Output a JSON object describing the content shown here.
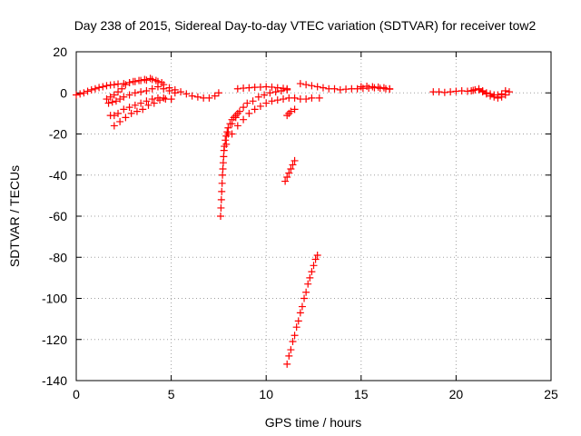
{
  "chart_data": {
    "type": "scatter",
    "title": "Day 238 of 2015, Sidereal Day-to-day VTEC variation (SDTVAR) for receiver tow2",
    "xlabel": "GPS time / hours",
    "ylabel": "SDTVAR / TECUs",
    "xlim": [
      0,
      25
    ],
    "ylim": [
      -140,
      20
    ],
    "xticks": [
      "0",
      "5",
      "10",
      "15",
      "20",
      "25"
    ],
    "yticks": [
      "20",
      "0",
      "-20",
      "-40",
      "-60",
      "-80",
      "-100",
      "-120",
      "-140"
    ],
    "grid": true,
    "marker": "plus",
    "color": "#ff0000",
    "series": [
      {
        "x": [
          0.0,
          0.2,
          0.4,
          0.6,
          0.8,
          1.0,
          1.2,
          1.4,
          1.6,
          1.8,
          2.0,
          2.2,
          2.5,
          2.8,
          3.1,
          3.4,
          3.7,
          4.0,
          4.3,
          4.6,
          4.9,
          5.2,
          5.5,
          5.8,
          6.1,
          6.4,
          6.7,
          7.0,
          7.3,
          7.5
        ],
        "y": [
          -1,
          -0.5,
          0,
          0.8,
          1.5,
          2,
          2.6,
          3,
          3.5,
          3.8,
          4,
          4.3,
          4.5,
          5,
          5.5,
          6,
          6.2,
          6.5,
          5.5,
          4,
          2.5,
          1.5,
          0.5,
          -0.5,
          -1.5,
          -2,
          -2.5,
          -2.5,
          -1.5,
          0
        ]
      },
      {
        "x": [
          1.6,
          1.8,
          2.0,
          2.2,
          2.4,
          2.6,
          2.8,
          3.0,
          3.3,
          3.6,
          3.9,
          4.2,
          4.5
        ],
        "y": [
          -3,
          -2,
          -1,
          0.5,
          2,
          4,
          5,
          5.5,
          6,
          6.5,
          7,
          6,
          5
        ]
      },
      {
        "x": [
          1.7,
          1.9,
          2.1,
          2.3,
          2.5,
          2.8,
          3.1,
          3.4,
          3.7,
          4.0,
          4.3,
          4.6,
          4.9,
          5.2
        ],
        "y": [
          -5,
          -4.5,
          -4,
          -3,
          -2,
          -1,
          0,
          0.5,
          1,
          2,
          3,
          2,
          1,
          0
        ]
      },
      {
        "x": [
          1.8,
          2.0,
          2.2,
          2.5,
          2.8,
          3.1,
          3.4,
          3.7,
          4.0,
          4.3,
          4.6,
          5.0
        ],
        "y": [
          -11,
          -11,
          -10,
          -8,
          -7,
          -6,
          -5,
          -4,
          -3,
          -2.5,
          -2.5,
          -3
        ]
      },
      {
        "x": [
          2.0,
          2.3,
          2.6,
          2.9,
          3.2,
          3.5,
          3.8,
          4.1,
          4.4,
          4.7,
          5.0
        ],
        "y": [
          -16,
          -14,
          -12,
          -10,
          -9,
          -8,
          -6,
          -5,
          -3.5,
          -3,
          -3
        ]
      },
      {
        "x": [
          7.6,
          7.62,
          7.64,
          7.66,
          7.68,
          7.7,
          7.72,
          7.74,
          7.76,
          7.78,
          7.8,
          7.85,
          7.9,
          7.95,
          8.0,
          8.1,
          8.2,
          8.3,
          8.4,
          8.5
        ],
        "y": [
          -60,
          -56,
          -52,
          -48,
          -44,
          -40,
          -37,
          -34,
          -31,
          -28,
          -26,
          -23,
          -21,
          -19,
          -17,
          -15,
          -13,
          -12,
          -11,
          -10
        ]
      },
      {
        "x": [
          7.9,
          8.0,
          8.2,
          8.4,
          8.6,
          8.8,
          9.0,
          9.3,
          9.6,
          9.9,
          10.2,
          10.5,
          10.8,
          11.1
        ],
        "y": [
          -25,
          -20,
          -15,
          -12,
          -9,
          -7,
          -5,
          -4,
          -2,
          -1,
          0,
          0.5,
          1,
          1.5
        ]
      },
      {
        "x": [
          8.2,
          8.5,
          8.8,
          9.1,
          9.4,
          9.7,
          10.0,
          10.3,
          10.6,
          10.9,
          11.2,
          11.5,
          11.8,
          12.1,
          12.4,
          12.8
        ],
        "y": [
          -20,
          -16,
          -13,
          -10,
          -8,
          -6.5,
          -5,
          -4,
          -3.5,
          -3,
          -2.5,
          -2.5,
          -3,
          -3,
          -2.5,
          -2.5
        ]
      },
      {
        "x": [
          8.5,
          8.8,
          9.1,
          9.4,
          9.7,
          10.0,
          10.3,
          10.6,
          10.9,
          11.1
        ],
        "y": [
          2,
          2.3,
          2.5,
          2.7,
          2.8,
          3,
          2.8,
          2.5,
          2.2,
          2
        ]
      },
      {
        "x": [
          11.1,
          11.2,
          11.3,
          11.5
        ],
        "y": [
          -11,
          -10,
          -9,
          -8
        ]
      },
      {
        "x": [
          11.0,
          11.1,
          11.2,
          11.3,
          11.4,
          11.5
        ],
        "y": [
          -43,
          -41,
          -39,
          -37,
          -35,
          -33
        ]
      },
      {
        "x": [
          11.1,
          11.2,
          11.3,
          11.4,
          11.5,
          11.6,
          11.7,
          11.8,
          11.9,
          12.0,
          12.1,
          12.2,
          12.3,
          12.4,
          12.5,
          12.6,
          12.7
        ],
        "y": [
          -132,
          -128,
          -125,
          -121,
          -118,
          -114,
          -111,
          -107,
          -104,
          -100,
          -97,
          -93,
          -90,
          -87,
          -84,
          -81,
          -79
        ]
      },
      {
        "x": [
          11.8,
          12.1,
          12.4,
          12.7,
          13.0,
          13.3,
          13.6,
          13.9,
          14.2,
          14.5,
          14.8,
          15.1,
          15.4,
          15.7,
          16.0,
          16.3,
          16.5
        ],
        "y": [
          4.5,
          4,
          3.5,
          3,
          2.5,
          2,
          2,
          1.5,
          1.8,
          2,
          2,
          2.2,
          2.3,
          2.5,
          2.2,
          2,
          1.8
        ]
      },
      {
        "x": [
          15.0,
          15.3,
          15.6,
          15.9,
          16.2,
          16.5
        ],
        "y": [
          3,
          3.2,
          3,
          2.8,
          2.5,
          2
        ]
      },
      {
        "x": [
          18.8,
          19.1,
          19.4,
          19.7,
          20.0,
          20.3,
          20.6,
          20.9,
          21.2,
          21.4,
          21.6,
          21.8,
          22.0,
          22.2,
          22.4,
          22.6,
          22.8
        ],
        "y": [
          0.5,
          0.5,
          0.2,
          0.5,
          0.8,
          1,
          0.8,
          1.2,
          1.5,
          0.5,
          -0.5,
          -1.5,
          -2,
          -2.5,
          -2,
          -1,
          0.5
        ]
      },
      {
        "x": [
          20.8,
          21.0,
          21.2,
          21.4,
          21.6,
          21.8,
          22.0,
          22.2,
          22.4,
          22.6
        ],
        "y": [
          1,
          1.5,
          2,
          1,
          0,
          -0.5,
          -1,
          -1,
          -0.5,
          1
        ]
      }
    ]
  }
}
